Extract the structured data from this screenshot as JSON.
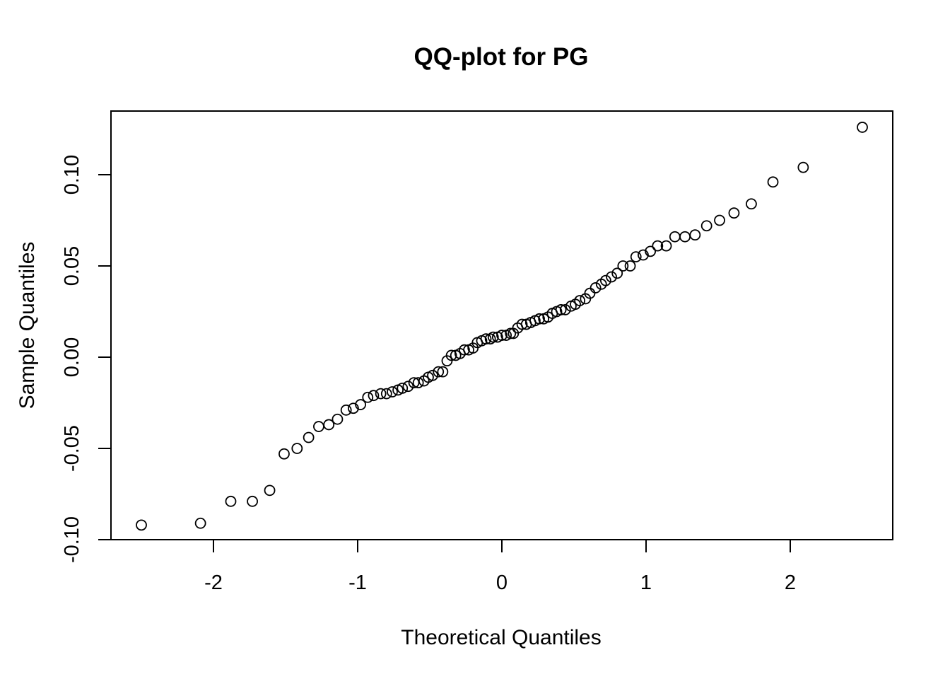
{
  "chart_data": {
    "type": "scatter",
    "title": "QQ-plot for PG",
    "xlabel": "Theoretical Quantiles",
    "ylabel": "Sample Quantiles",
    "xlim": [
      -2.6,
      2.7
    ],
    "ylim": [
      -0.1,
      0.135
    ],
    "xticks": [
      -2,
      -1,
      0,
      1,
      2
    ],
    "xtick_labels": [
      "-2",
      "-1",
      "0",
      "1",
      "2"
    ],
    "yticks": [
      -0.1,
      -0.05,
      0,
      0.05,
      0.1
    ],
    "ytick_labels": [
      "-0.10",
      "-0.05",
      "0.00",
      "0.05",
      "0.10"
    ],
    "grid": false,
    "points": [
      [
        -2.5,
        -0.092
      ],
      [
        -2.09,
        -0.091
      ],
      [
        -1.88,
        -0.079
      ],
      [
        -1.73,
        -0.079
      ],
      [
        -1.61,
        -0.073
      ],
      [
        -1.51,
        -0.053
      ],
      [
        -1.42,
        -0.05
      ],
      [
        -1.34,
        -0.044
      ],
      [
        -1.27,
        -0.038
      ],
      [
        -1.2,
        -0.037
      ],
      [
        -1.14,
        -0.034
      ],
      [
        -1.08,
        -0.029
      ],
      [
        -1.03,
        -0.028
      ],
      [
        -0.98,
        -0.026
      ],
      [
        -0.93,
        -0.022
      ],
      [
        -0.89,
        -0.021
      ],
      [
        -0.84,
        -0.02
      ],
      [
        -0.8,
        -0.02
      ],
      [
        -0.76,
        -0.019
      ],
      [
        -0.72,
        -0.018
      ],
      [
        -0.69,
        -0.017
      ],
      [
        -0.65,
        -0.016
      ],
      [
        -0.61,
        -0.014
      ],
      [
        -0.58,
        -0.014
      ],
      [
        -0.54,
        -0.013
      ],
      [
        -0.51,
        -0.011
      ],
      [
        -0.48,
        -0.01
      ],
      [
        -0.44,
        -0.008
      ],
      [
        -0.41,
        -0.008
      ],
      [
        -0.38,
        -0.002
      ],
      [
        -0.35,
        0.001
      ],
      [
        -0.32,
        0.001
      ],
      [
        -0.29,
        0.002
      ],
      [
        -0.26,
        0.004
      ],
      [
        -0.23,
        0.004
      ],
      [
        -0.2,
        0.005
      ],
      [
        -0.17,
        0.008
      ],
      [
        -0.14,
        0.009
      ],
      [
        -0.11,
        0.01
      ],
      [
        -0.08,
        0.01
      ],
      [
        -0.06,
        0.011
      ],
      [
        -0.03,
        0.011
      ],
      [
        0.0,
        0.012
      ],
      [
        0.03,
        0.012
      ],
      [
        0.06,
        0.013
      ],
      [
        0.08,
        0.013
      ],
      [
        0.11,
        0.016
      ],
      [
        0.14,
        0.018
      ],
      [
        0.17,
        0.018
      ],
      [
        0.2,
        0.019
      ],
      [
        0.23,
        0.02
      ],
      [
        0.26,
        0.021
      ],
      [
        0.29,
        0.021
      ],
      [
        0.32,
        0.022
      ],
      [
        0.35,
        0.024
      ],
      [
        0.38,
        0.025
      ],
      [
        0.41,
        0.026
      ],
      [
        0.44,
        0.026
      ],
      [
        0.48,
        0.028
      ],
      [
        0.51,
        0.029
      ],
      [
        0.54,
        0.031
      ],
      [
        0.58,
        0.032
      ],
      [
        0.61,
        0.035
      ],
      [
        0.65,
        0.038
      ],
      [
        0.69,
        0.04
      ],
      [
        0.72,
        0.042
      ],
      [
        0.76,
        0.044
      ],
      [
        0.8,
        0.046
      ],
      [
        0.84,
        0.05
      ],
      [
        0.89,
        0.05
      ],
      [
        0.93,
        0.055
      ],
      [
        0.98,
        0.056
      ],
      [
        1.03,
        0.058
      ],
      [
        1.08,
        0.061
      ],
      [
        1.14,
        0.061
      ],
      [
        1.2,
        0.066
      ],
      [
        1.27,
        0.066
      ],
      [
        1.34,
        0.067
      ],
      [
        1.42,
        0.072
      ],
      [
        1.51,
        0.075
      ],
      [
        1.61,
        0.079
      ],
      [
        1.73,
        0.084
      ],
      [
        1.88,
        0.096
      ],
      [
        2.09,
        0.104
      ],
      [
        2.5,
        0.126
      ]
    ]
  }
}
